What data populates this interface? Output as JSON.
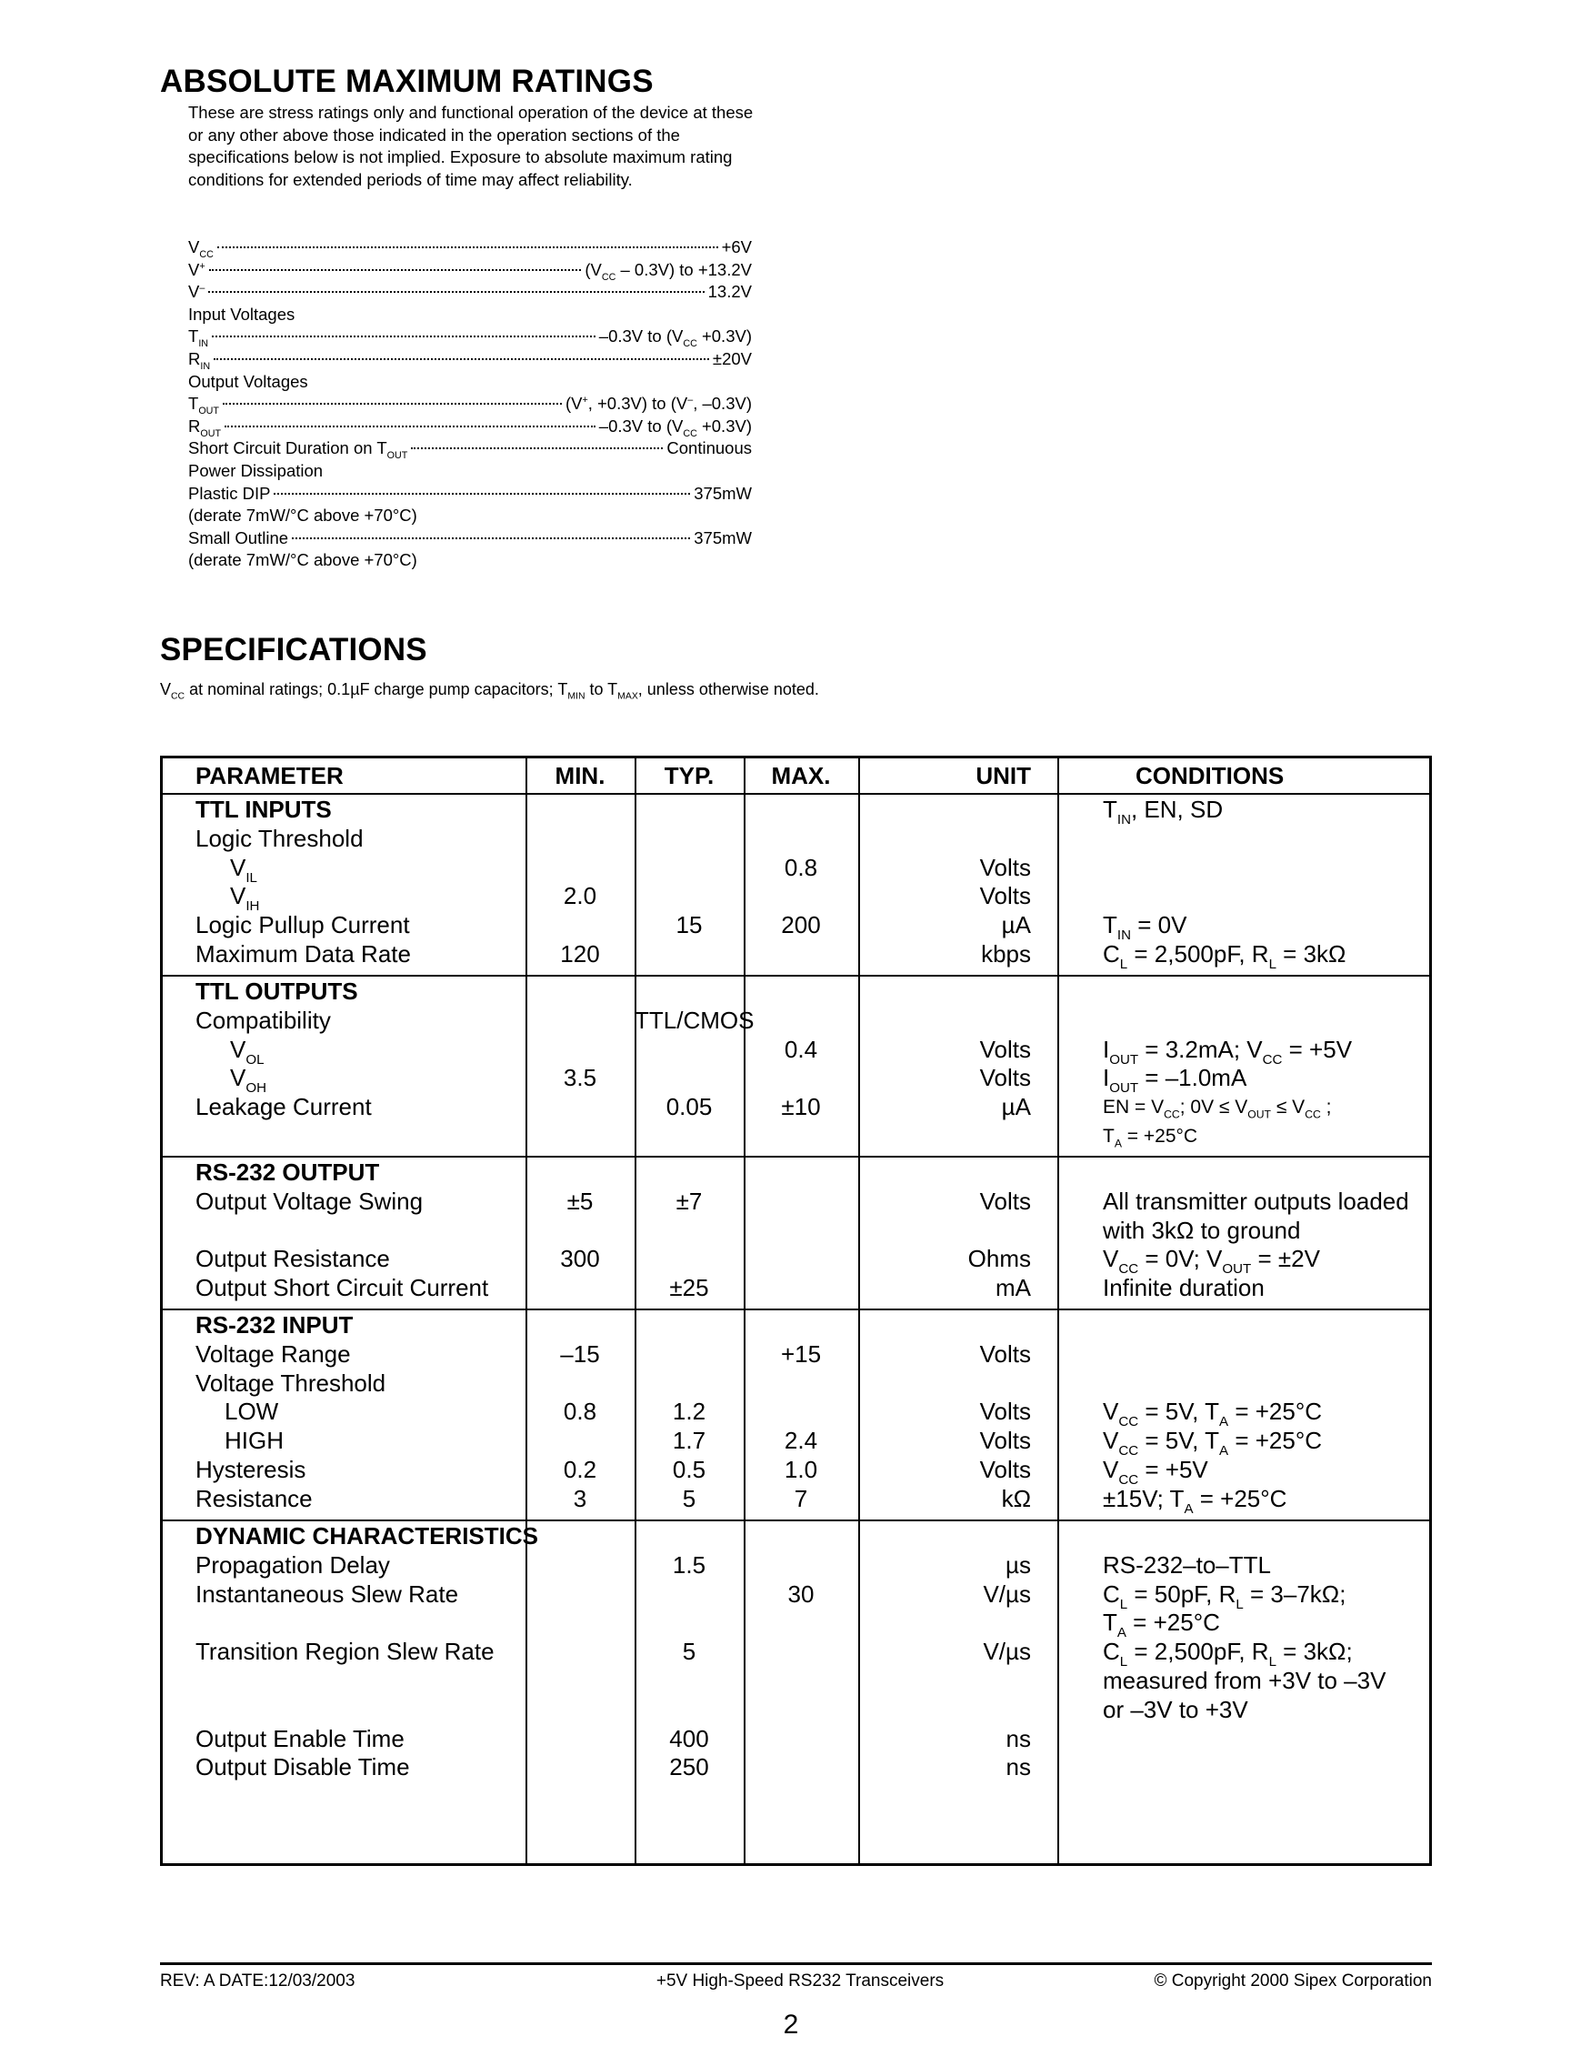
{
  "abs_max": {
    "title": "ABSOLUTE MAXIMUM RATINGS",
    "intro": "These are stress ratings only and functional operation of the device at these or any other above those indicated in the operation sections of the specifications below is not implied. Exposure to absolute maximum rating conditions for extended periods of time may affect reliability.",
    "items": [
      {
        "label": "V_{CC}",
        "value": "+6V"
      },
      {
        "label": "V^{+}",
        "value": "(V_{CC} – 0.3V) to +13.2V"
      },
      {
        "label": "V^{–}",
        "value": "13.2V"
      },
      {
        "label": "Input Voltages",
        "value": null
      },
      {
        "label": "T_{IN}",
        "value": "–0.3V to (V_{CC} +0.3V)"
      },
      {
        "label": "R_{IN}",
        "value": "±20V"
      },
      {
        "label": "Output Voltages",
        "value": null
      },
      {
        "label": "T_{OUT}",
        "value": "(V^{+}, +0.3V) to (V^{–}, –0.3V)"
      },
      {
        "label": "R_{OUT}",
        "value": "–0.3V to (V_{CC} +0.3V)"
      },
      {
        "label": "Short Circuit Duration on T_{OUT}",
        "value": "Continuous"
      },
      {
        "label": "Power Dissipation",
        "value": null
      },
      {
        "label": "Plastic DIP",
        "value": "375mW"
      },
      {
        "label": "(derate 7mW/°C above +70°C)",
        "value": null
      },
      {
        "label": "Small Outline",
        "value": "375mW"
      },
      {
        "label": "(derate 7mW/°C above +70°C)",
        "value": null
      }
    ]
  },
  "specs": {
    "title": "SPECIFICATIONS",
    "subtitle": "V_{CC} at nominal ratings; 0.1µF charge pump capacitors; T_{MIN} to T_{MAX}, unless otherwise noted.",
    "headers": {
      "param": "PARAMETER",
      "min": "MIN.",
      "typ": "TYP.",
      "max": "MAX.",
      "unit": "UNIT",
      "cond": "CONDITIONS"
    },
    "sections": [
      {
        "rows": [
          {
            "param": "TTL INPUTS",
            "title": true,
            "cond": "T_{IN}, EN, SD"
          },
          {
            "param": "Logic Threshold"
          },
          {
            "param": "V_{IL}",
            "indent": 1,
            "max": "0.8",
            "unit": "Volts"
          },
          {
            "param": "V_{IH}",
            "indent": 1,
            "min": "2.0",
            "unit": "Volts"
          },
          {
            "param": "Logic Pullup Current",
            "typ": "15",
            "max": "200",
            "unit": "µA",
            "cond": "T_{IN} = 0V"
          },
          {
            "param": "Maximum Data Rate",
            "min": "120",
            "unit": "kbps",
            "cond": "C_{L} = 2,500pF, R_{L} = 3kΩ"
          }
        ]
      },
      {
        "rows": [
          {
            "param": "TTL OUTPUTS",
            "title": true
          },
          {
            "param": "Compatibility",
            "typ": "TTL/CMOS"
          },
          {
            "param": "V_{OL}",
            "indent": 1,
            "max": "0.4",
            "unit": "Volts",
            "cond": "I_{OUT} = 3.2mA; V_{CC} = +5V"
          },
          {
            "param": "V_{OH}",
            "indent": 1,
            "min": "3.5",
            "unit": "Volts",
            "cond": "I_{OUT} = –1.0mA"
          },
          {
            "param": "Leakage Current",
            "typ": "0.05",
            "max": "±10",
            "unit": "µA",
            "cond": "EN = V_{CC}; 0V ≤ V_{OUT} ≤ V_{CC} ;",
            "small": true
          },
          {
            "cond": "T_{A} = +25°C",
            "small": true
          }
        ]
      },
      {
        "rows": [
          {
            "param": "RS-232 OUTPUT",
            "title": true
          },
          {
            "param": "Output Voltage Swing",
            "min": "±5",
            "typ": "±7",
            "unit": "Volts",
            "cond": "All transmitter outputs loaded"
          },
          {
            "cond": "with 3kΩ to ground"
          },
          {
            "param": "Output Resistance",
            "min": "300",
            "unit": "Ohms",
            "cond": "V_{CC} = 0V; V_{OUT} = ±2V"
          },
          {
            "param": "Output Short Circuit Current",
            "typ": "±25",
            "unit": "mA",
            "cond": "Infinite duration"
          }
        ]
      },
      {
        "rows": [
          {
            "param": "RS-232 INPUT",
            "title": true
          },
          {
            "param": "Voltage Range",
            "min": "–15",
            "max": "+15",
            "unit": "Volts"
          },
          {
            "param": "Voltage Threshold"
          },
          {
            "param": "LOW",
            "indent": 2,
            "min": "0.8",
            "typ": "1.2",
            "unit": "Volts",
            "cond": "V_{CC} = 5V, T_{A} = +25°C"
          },
          {
            "param": "HIGH",
            "indent": 2,
            "typ": "1.7",
            "max": "2.4",
            "unit": "Volts",
            "cond": "V_{CC} = 5V, T_{A} = +25°C"
          },
          {
            "param": "Hysteresis",
            "min": "0.2",
            "typ": "0.5",
            "max": "1.0",
            "unit": "Volts",
            "cond": "V_{CC} = +5V"
          },
          {
            "param": "Resistance",
            "min": "3",
            "typ": "5",
            "max": "7",
            "unit": "kΩ",
            "cond": "±15V; T_{A} = +25°C"
          }
        ]
      },
      {
        "rows": [
          {
            "param": "DYNAMIC CHARACTERISTICS",
            "title": true
          },
          {
            "param": "Propagation Delay",
            "typ": "1.5",
            "unit": "µs",
            "cond": "RS-232–to–TTL"
          },
          {
            "param": "Instantaneous Slew Rate",
            "max": "30",
            "unit": "V/µs",
            "cond": "C_{L} = 50pF, R_{L} = 3–7kΩ;"
          },
          {
            "cond": "T_{A} = +25°C"
          },
          {
            "param": "Transition Region Slew Rate",
            "typ": "5",
            "unit": "V/µs",
            "cond": "C_{L} = 2,500pF, R_{L} = 3kΩ;"
          },
          {
            "cond": "measured from +3V to –3V"
          },
          {
            "cond": "or –3V to +3V"
          },
          {
            "param": "Output Enable Time",
            "typ": "400",
            "unit": "ns"
          },
          {
            "param": "Output Disable Time",
            "typ": "250",
            "unit": "ns"
          }
        ]
      }
    ]
  },
  "footer": {
    "rev": "REV: A   DATE:12/03/2003",
    "product": "+5V High-Speed RS232 Transceivers",
    "copyright": "© Copyright 2000 Sipex Corporation",
    "page": "2"
  }
}
